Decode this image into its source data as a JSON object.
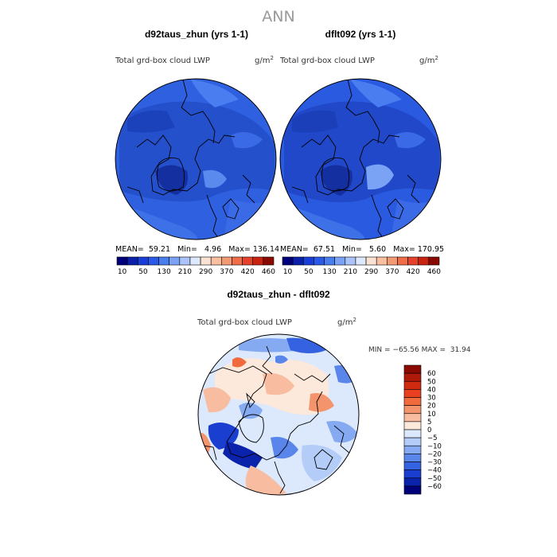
{
  "chart_data": {
    "page_title": "ANN",
    "panels": [
      {
        "type": "polar-contour-map",
        "title": "d92taus_zhun (yrs 1-1)",
        "variable": "Total grd-box cloud LWP",
        "units": "g/m",
        "units_exp": "2",
        "stats": {
          "mean_label": "MEAN=",
          "mean": "59.21",
          "min_label": "Min=",
          "min": "4.96",
          "max_label": "Max=",
          "max": "136.14"
        },
        "colorbar_ticks": [
          "10",
          "50",
          "130",
          "210",
          "290",
          "370",
          "420",
          "460"
        ]
      },
      {
        "type": "polar-contour-map",
        "title": "dflt092 (yrs 1-1)",
        "variable": "Total grd-box cloud LWP",
        "units": "g/m",
        "units_exp": "2",
        "stats": {
          "mean_label": "MEAN=",
          "mean": "67.51",
          "min_label": "Min=",
          "min": "5.60",
          "max_label": "Max=",
          "max": "170.95"
        },
        "colorbar_ticks": [
          "10",
          "50",
          "130",
          "210",
          "290",
          "370",
          "420",
          "460"
        ]
      },
      {
        "type": "polar-contour-map",
        "title": "d92taus_zhun - dflt092",
        "variable": "Total grd-box cloud LWP",
        "units": "g/m",
        "units_exp": "2",
        "minmax_text": "MIN = −65.56 MAX =  31.94",
        "colorbar_labels": [
          "60",
          "50",
          "40",
          "30",
          "20",
          "10",
          "5",
          "0",
          "−5",
          "−10",
          "−20",
          "−30",
          "−40",
          "−50",
          "−60"
        ]
      }
    ],
    "colorbar_colors": [
      "#00007a",
      "#0a1faa",
      "#1a3fd6",
      "#2a5ae8",
      "#4a7ef0",
      "#7aa3f5",
      "#aac4f8",
      "#dde8fb",
      "#fbe3d4",
      "#f8c0a0",
      "#f49a72",
      "#ee6e48",
      "#e6422a",
      "#c82412",
      "#8c0a04"
    ],
    "diff_colors": [
      "#8c0a04",
      "#b01a0a",
      "#d02a10",
      "#e84020",
      "#f06a3e",
      "#f4946c",
      "#f8bca0",
      "#fde8dc",
      "#dce8fb",
      "#b4cdf8",
      "#86aaf2",
      "#5a86ec",
      "#3462e0",
      "#1a3fd0",
      "#0a23aa",
      "#00007a"
    ]
  }
}
